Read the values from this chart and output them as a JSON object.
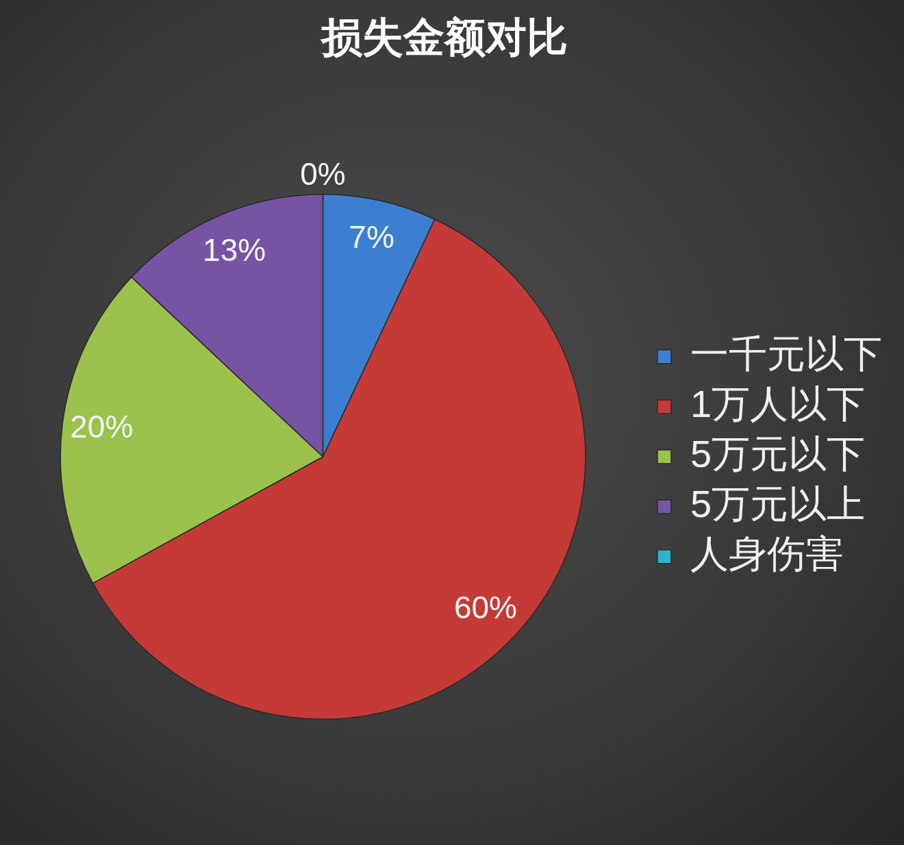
{
  "chart_data": {
    "type": "pie",
    "title": "损失金额对比",
    "categories": [
      "一千元以下",
      "1万人以下",
      "5万元以下",
      "5万元以上",
      "人身伤害"
    ],
    "values": [
      7,
      60,
      20,
      13,
      0
    ],
    "colors": [
      "#3c7fd0",
      "#c43a36",
      "#9bc24c",
      "#7654a3",
      "#2cb4d4"
    ],
    "value_labels": [
      "7%",
      "60%",
      "20%",
      "13%",
      "0%"
    ],
    "legend": "right"
  }
}
